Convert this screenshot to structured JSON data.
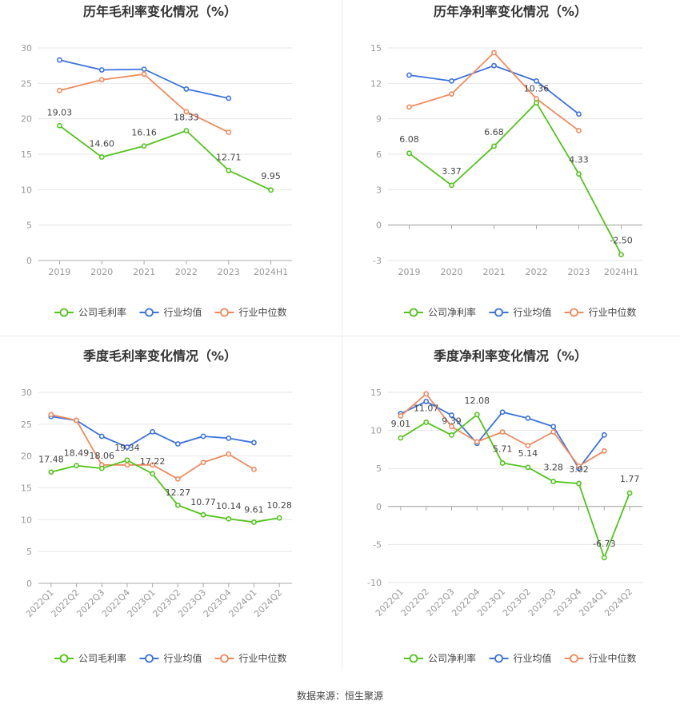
{
  "colors": {
    "company": "#52c41a",
    "avg": "#3b72e0",
    "median": "#f08a5d",
    "grid": "#e6e6e6",
    "axis": "#999999"
  },
  "chart_data": [
    {
      "type": "line",
      "title": "历年毛利率变化情况（%）",
      "categories": [
        "2019",
        "2020",
        "2021",
        "2022",
        "2023",
        "2024H1"
      ],
      "ylim": [
        0,
        30
      ],
      "yticks": [
        0,
        5,
        10,
        15,
        20,
        25,
        30
      ],
      "grid": true,
      "legend": "bottom",
      "series": [
        {
          "name": "公司毛利率",
          "color": "#52c41a",
          "labels": true,
          "values": [
            19.03,
            14.6,
            16.16,
            18.33,
            12.71,
            9.95
          ]
        },
        {
          "name": "行业均值",
          "color": "#3b72e0",
          "labels": false,
          "values": [
            28.3,
            26.9,
            27.0,
            24.2,
            22.9,
            null
          ]
        },
        {
          "name": "行业中位数",
          "color": "#f08a5d",
          "labels": false,
          "values": [
            24.0,
            25.5,
            26.3,
            21.0,
            18.1,
            null
          ]
        }
      ]
    },
    {
      "type": "line",
      "title": "历年净利率变化情况（%）",
      "categories": [
        "2019",
        "2020",
        "2021",
        "2022",
        "2023",
        "2024H1"
      ],
      "ylim": [
        -3,
        15
      ],
      "yticks": [
        -3,
        0,
        3,
        6,
        9,
        12,
        15
      ],
      "grid": true,
      "legend": "bottom",
      "series": [
        {
          "name": "公司净利率",
          "color": "#52c41a",
          "labels": true,
          "values": [
            6.08,
            3.37,
            6.68,
            10.36,
            4.33,
            -2.5
          ]
        },
        {
          "name": "行业均值",
          "color": "#3b72e0",
          "labels": false,
          "values": [
            12.7,
            12.2,
            13.5,
            12.2,
            9.4,
            null
          ]
        },
        {
          "name": "行业中位数",
          "color": "#f08a5d",
          "labels": false,
          "values": [
            10.0,
            11.1,
            14.6,
            10.7,
            8.0,
            null
          ]
        }
      ]
    },
    {
      "type": "line",
      "title": "季度毛利率变化情况（%）",
      "categories": [
        "2022Q1",
        "2022Q2",
        "2022Q3",
        "2022Q4",
        "2023Q1",
        "2023Q2",
        "2023Q3",
        "2023Q4",
        "2024Q1",
        "2024Q2"
      ],
      "ylim": [
        0,
        30
      ],
      "yticks": [
        0,
        5,
        10,
        15,
        20,
        25,
        30
      ],
      "grid": true,
      "legend": "bottom",
      "series": [
        {
          "name": "公司毛利率",
          "color": "#52c41a",
          "labels": true,
          "values": [
            17.48,
            18.49,
            18.06,
            19.34,
            17.22,
            12.27,
            10.77,
            10.14,
            9.61,
            10.28
          ]
        },
        {
          "name": "行业均值",
          "color": "#3b72e0",
          "labels": false,
          "values": [
            26.2,
            25.6,
            23.1,
            21.4,
            23.8,
            21.9,
            23.1,
            22.8,
            22.1,
            null
          ]
        },
        {
          "name": "行业中位数",
          "color": "#f08a5d",
          "labels": false,
          "values": [
            26.5,
            25.6,
            18.6,
            18.6,
            18.6,
            16.4,
            19.0,
            20.3,
            17.9,
            null
          ]
        }
      ]
    },
    {
      "type": "line",
      "title": "季度净利率变化情况（%）",
      "categories": [
        "2022Q1",
        "2022Q2",
        "2022Q3",
        "2022Q4",
        "2023Q1",
        "2023Q2",
        "2023Q3",
        "2023Q4",
        "2024Q1",
        "2024Q2"
      ],
      "ylim": [
        -10,
        15
      ],
      "yticks": [
        -10,
        -5,
        0,
        5,
        10,
        15
      ],
      "grid": true,
      "legend": "bottom",
      "series": [
        {
          "name": "公司净利率",
          "color": "#52c41a",
          "labels": true,
          "values": [
            9.01,
            11.07,
            9.39,
            12.08,
            5.71,
            5.14,
            3.28,
            3.02,
            -6.73,
            1.77
          ]
        },
        {
          "name": "行业均值",
          "color": "#3b72e0",
          "labels": false,
          "values": [
            12.2,
            13.8,
            12.0,
            8.3,
            12.4,
            11.6,
            10.5,
            5.0,
            9.4,
            null
          ]
        },
        {
          "name": "行业中位数",
          "color": "#f08a5d",
          "labels": false,
          "values": [
            11.9,
            14.8,
            10.5,
            8.5,
            9.8,
            8.0,
            9.8,
            5.3,
            7.3,
            null
          ]
        }
      ]
    }
  ],
  "footer": "数据来源：恒生聚源"
}
